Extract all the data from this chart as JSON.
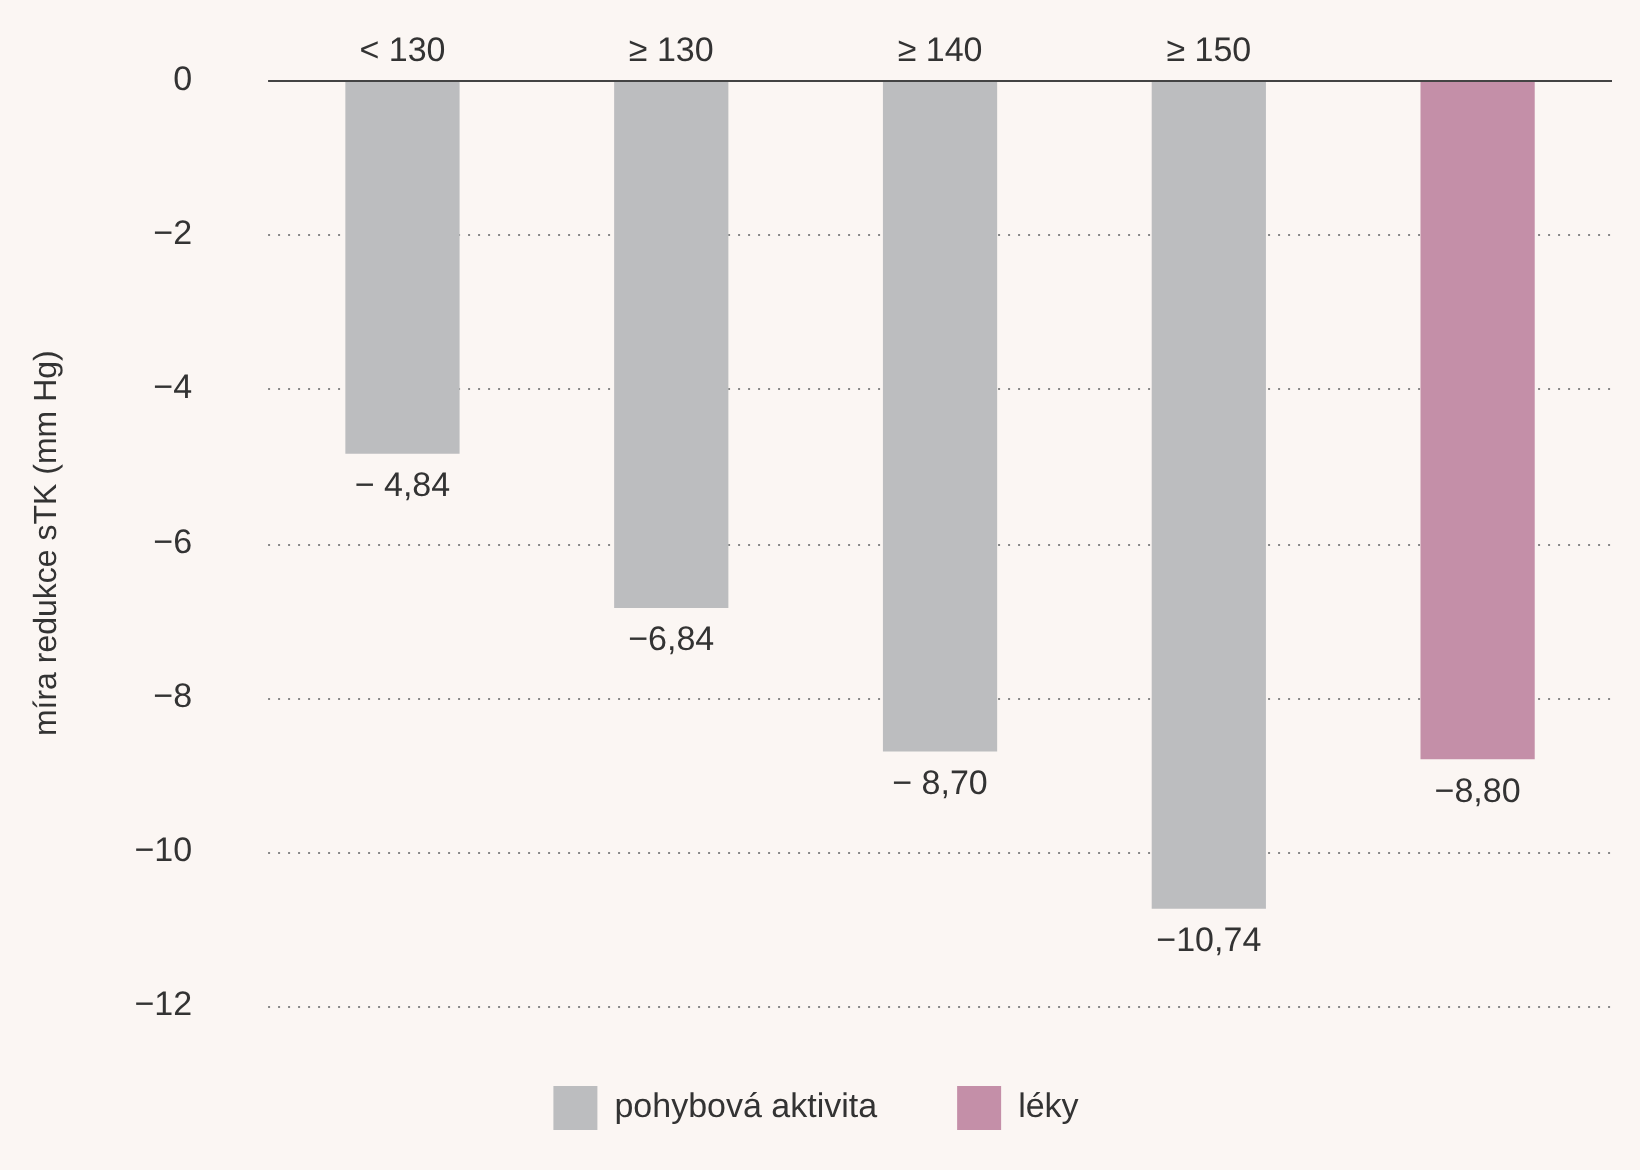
{
  "chart_data": {
    "type": "bar",
    "ylabel": "míra redukce sTK (mm Hg)",
    "categories": [
      "< 130",
      "≥ 130",
      "≥ 140",
      "≥ 150",
      null
    ],
    "series": [
      {
        "name": "pohybová aktivita",
        "color": "#bcbdbf",
        "values": [
          -4.84,
          -6.84,
          -8.7,
          -10.74,
          null
        ],
        "value_labels": [
          "− 4,84",
          "−6,84",
          "− 8,70",
          "−10,74",
          null
        ]
      },
      {
        "name": "léky",
        "color": "#c48fa8",
        "values": [
          null,
          null,
          null,
          null,
          -8.8
        ],
        "value_labels": [
          null,
          null,
          null,
          null,
          "−8,80"
        ]
      }
    ],
    "ylim": [
      -12,
      0
    ],
    "yticks": [
      0,
      {
        "value": -2,
        "label": "−2"
      },
      {
        "value": -4,
        "label": "−4"
      },
      {
        "value": -6,
        "label": "−6"
      },
      {
        "value": -8,
        "label": "−8"
      },
      {
        "value": -10,
        "label": "−10"
      },
      {
        "value": -12,
        "label": "−12"
      }
    ],
    "grid": "y",
    "legend": "bottom"
  }
}
